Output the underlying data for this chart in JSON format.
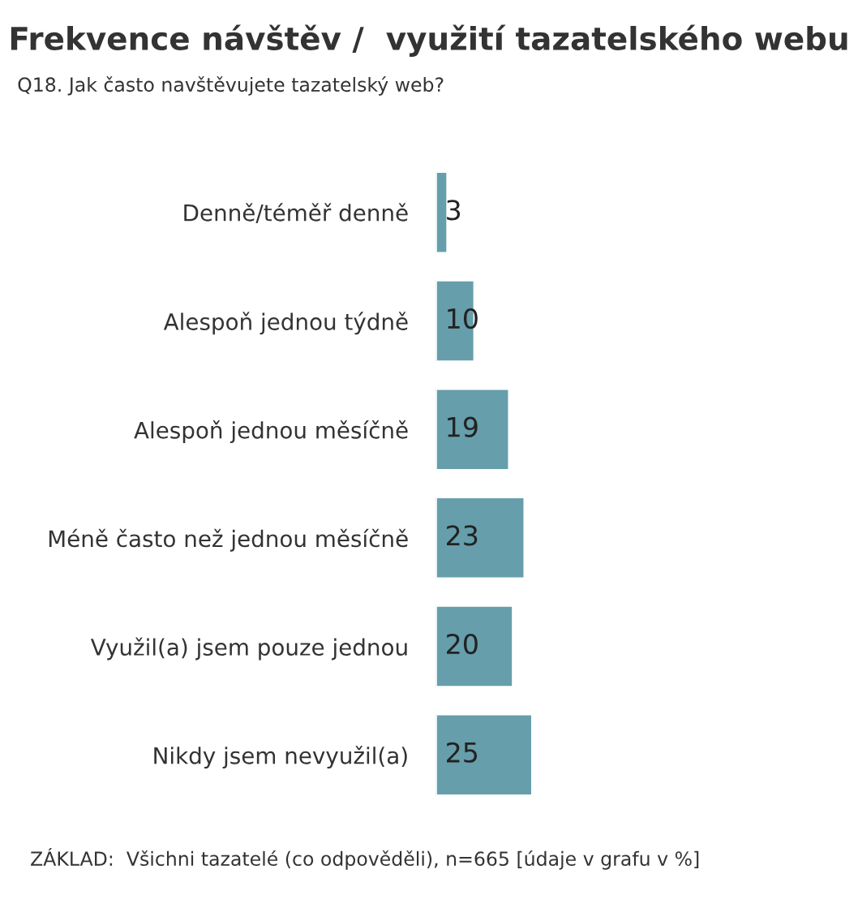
{
  "chart_data": {
    "type": "bar",
    "orientation": "horizontal",
    "title": "Frekvence návštěv /  využití tazatelského webu",
    "subtitle": "Q18. Jak často navštěvujete tazatelský web?",
    "categories": [
      "Denně/téměř denně",
      "Alespoň jednou týdně",
      "Alespoň jednou měsíčně",
      "Méně často než jednou měsíčně",
      "Využil(a) jsem pouze jednou",
      "Nikdy jsem nevyužil(a)"
    ],
    "values": [
      3,
      10,
      19,
      23,
      20,
      25
    ],
    "color": "#669eab",
    "data_labels": true,
    "tick_labels": "y",
    "grid": false,
    "legend": false,
    "annotations": [
      "ZÁKLAD:  Všichni tazatelé (co odpověděli), n=665 [údaje v grafu v %]"
    ]
  }
}
